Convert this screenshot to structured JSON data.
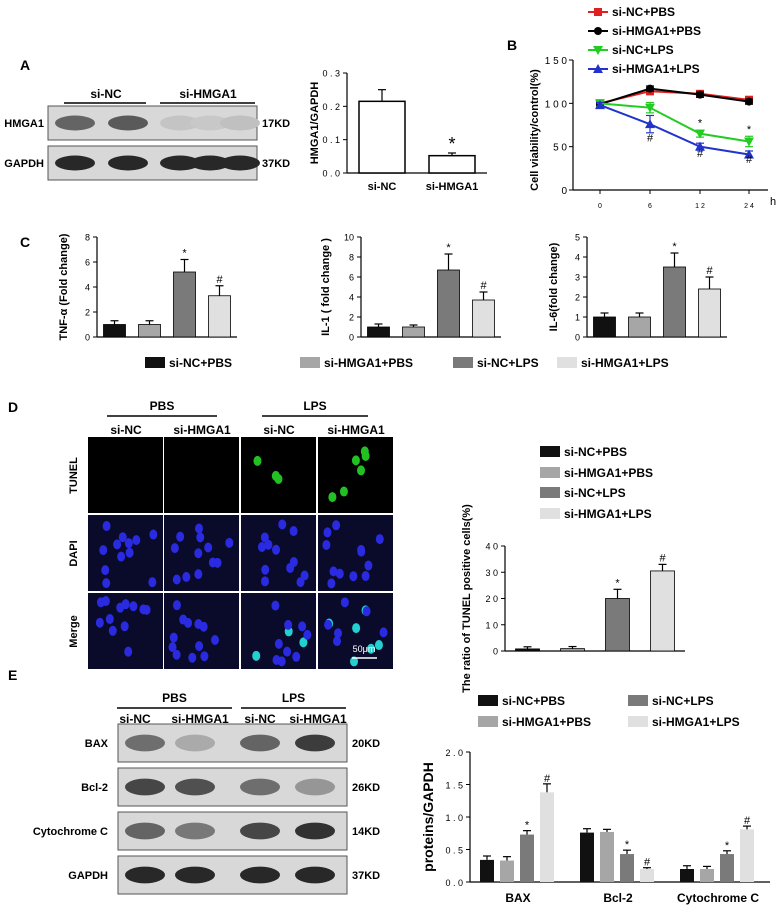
{
  "colors": {
    "black": "#111111",
    "gray": "#a6a6a6",
    "dark_gray": "#7a7a7a",
    "light": "#e0e0e0",
    "red": "#e02020",
    "green": "#22cc22",
    "blue": "#2233cc",
    "tunel_bg": "#000000",
    "dapi_bg": "#0a0a2a",
    "nucleus": "#2a2ae0",
    "tunel_pos": "#22c022",
    "merge_pos": "#22d0d0"
  },
  "panel_letters": {
    "a": "A",
    "b": "B",
    "c": "C",
    "d": "D",
    "e": "E"
  },
  "panel_a": {
    "blot_header": [
      "si-NC",
      "si-HMGA1"
    ],
    "rows": [
      {
        "label": "HMGA1",
        "kd": "17KD",
        "bands": [
          0.6,
          0.65,
          0.12,
          0.1,
          0.14
        ]
      },
      {
        "label": "GAPDH",
        "kd": "37KD",
        "bands": [
          0.9,
          0.9,
          0.9,
          0.9,
          0.9
        ]
      }
    ]
  },
  "panel_d": {
    "group_labels": [
      "PBS",
      "LPS"
    ],
    "col_labels": [
      "si-NC",
      "si-HMGA1",
      "si-NC",
      "si-HMGA1"
    ],
    "row_labels": [
      "TUNEL",
      "DAPI",
      "Merge"
    ],
    "scale_bar": "50μm",
    "legend": [
      "si-NC+PBS",
      "si-HMGA1+PBS",
      "si-NC+LPS",
      "si-HMGA1+LPS"
    ]
  },
  "panel_e": {
    "group_labels": [
      "PBS",
      "LPS"
    ],
    "col_labels": [
      "si-NC",
      "si-HMGA1",
      "si-NC",
      "si-HMGA1"
    ],
    "rows": [
      {
        "label": "BAX",
        "kd": "20KD",
        "bands": [
          0.55,
          0.25,
          0.6,
          0.8
        ]
      },
      {
        "label": "Bcl-2",
        "kd": "26KD",
        "bands": [
          0.75,
          0.7,
          0.55,
          0.35
        ]
      },
      {
        "label": "Cytochrome C",
        "kd": "14KD",
        "bands": [
          0.6,
          0.5,
          0.75,
          0.85
        ]
      },
      {
        "label": "GAPDH",
        "kd": "37KD",
        "bands": [
          0.9,
          0.9,
          0.9,
          0.9
        ]
      }
    ],
    "legend": [
      "si-NC+PBS",
      "si-HMGA1+PBS",
      "si-NC+LPS",
      "si-HMGA1+LPS"
    ]
  },
  "legend_c": [
    "si-NC+PBS",
    "si-HMGA1+PBS",
    "si-NC+LPS",
    "si-HMGA1+LPS"
  ],
  "chart_data": [
    {
      "id": "a_bar",
      "type": "bar",
      "categories": [
        "si-NC",
        "si-HMGA1"
      ],
      "values": [
        0.215,
        0.052
      ],
      "errors": [
        0.035,
        0.008
      ],
      "ylabel": "HMGA1/GAPDH",
      "ylim": [
        0,
        0.3
      ],
      "yticks": [
        "0 . 0",
        "0 . 1",
        "0 . 2",
        "0 . 3"
      ],
      "annotations": [
        "",
        "*"
      ]
    },
    {
      "id": "b_line",
      "type": "line",
      "x": [
        0,
        6,
        12,
        24
      ],
      "xticks": [
        "0",
        "6",
        "1 2",
        "2 4"
      ],
      "xunit": "h",
      "ylabel": "Cell viability/control(%)",
      "ylim": [
        0,
        150
      ],
      "yticks": [
        "0",
        "5 0",
        "1 0 0",
        "1 5 0"
      ],
      "series": [
        {
          "name": "si-NC+PBS",
          "color": "red",
          "marker": "square",
          "values": [
            100,
            114,
            111,
            104
          ],
          "errors": [
            3,
            4,
            3,
            4
          ]
        },
        {
          "name": "si-HMGA1+PBS",
          "color": "black",
          "marker": "circle",
          "values": [
            99,
            117,
            110,
            102
          ],
          "errors": [
            3,
            3,
            3,
            3
          ]
        },
        {
          "name": "si-NC+LPS",
          "color": "green",
          "marker": "triangle-down",
          "values": [
            100,
            95,
            65,
            56
          ],
          "errors": [
            4,
            6,
            4,
            6
          ]
        },
        {
          "name": "si-HMGA1+LPS",
          "color": "blue",
          "marker": "triangle-up",
          "values": [
            98,
            76,
            50,
            41
          ],
          "errors": [
            3,
            10,
            4,
            4
          ]
        }
      ],
      "annotations": [
        {
          "text": "*",
          "x": 12,
          "y": 73
        },
        {
          "text": "*",
          "x": 24,
          "y": 66
        },
        {
          "text": "#",
          "x": 6,
          "y": 56
        },
        {
          "text": "#",
          "x": 12,
          "y": 38
        },
        {
          "text": "#",
          "x": 24,
          "y": 31
        }
      ]
    },
    {
      "id": "c1",
      "type": "bar",
      "categories": [
        "si-NC+PBS",
        "si-HMGA1+PBS",
        "si-NC+LPS",
        "si-HMGA1+LPS"
      ],
      "values": [
        1.0,
        1.0,
        5.2,
        3.3
      ],
      "errors": [
        0.3,
        0.3,
        1.0,
        0.8
      ],
      "ylabel": "TNF-α (Fold change)",
      "ylim": [
        0,
        8
      ],
      "yticks": [
        "0",
        "2",
        "4",
        "6",
        "8"
      ],
      "annotations": [
        "",
        "",
        "*",
        "#"
      ]
    },
    {
      "id": "c2",
      "type": "bar",
      "categories": [
        "si-NC+PBS",
        "si-HMGA1+PBS",
        "si-NC+LPS",
        "si-HMGA1+LPS"
      ],
      "values": [
        1.0,
        1.0,
        6.7,
        3.7
      ],
      "errors": [
        0.3,
        0.2,
        1.6,
        0.8
      ],
      "ylabel": "IL-1 ( fold change )",
      "ylim": [
        0,
        10
      ],
      "yticks": [
        "0",
        "2",
        "4",
        "6",
        "8",
        "10"
      ],
      "annotations": [
        "",
        "",
        "*",
        "#"
      ]
    },
    {
      "id": "c3",
      "type": "bar",
      "categories": [
        "si-NC+PBS",
        "si-HMGA1+PBS",
        "si-NC+LPS",
        "si-HMGA1+LPS"
      ],
      "values": [
        1.0,
        1.0,
        3.5,
        2.4
      ],
      "errors": [
        0.2,
        0.2,
        0.7,
        0.6
      ],
      "ylabel": "IL-6(fold change)",
      "ylim": [
        0,
        5
      ],
      "yticks": [
        "0",
        "1",
        "2",
        "3",
        "4",
        "5"
      ],
      "annotations": [
        "",
        "",
        "*",
        "#"
      ]
    },
    {
      "id": "d_bar",
      "type": "bar",
      "categories": [
        "si-NC+PBS",
        "si-HMGA1+PBS",
        "si-NC+LPS",
        "si-HMGA1+LPS"
      ],
      "values": [
        0.8,
        0.9,
        20,
        30.5
      ],
      "errors": [
        0.8,
        0.8,
        3.5,
        2.5
      ],
      "ylabel": "The ratio of TUNEL positive cells(%)",
      "ylim": [
        0,
        40
      ],
      "yticks": [
        "0",
        "1 0",
        "2 0",
        "3 0",
        "4 0"
      ],
      "annotations": [
        "",
        "",
        "*",
        "#"
      ]
    },
    {
      "id": "e_bar",
      "type": "bar",
      "categories": [
        "BAX",
        "Bcl-2",
        "Cytochrome C"
      ],
      "series": [
        {
          "name": "si-NC+PBS",
          "values": [
            0.34,
            0.76,
            0.2
          ],
          "errors": [
            0.06,
            0.06,
            0.05
          ]
        },
        {
          "name": "si-HMGA1+PBS",
          "values": [
            0.33,
            0.77,
            0.2
          ],
          "errors": [
            0.06,
            0.04,
            0.04
          ]
        },
        {
          "name": "si-NC+LPS",
          "values": [
            0.73,
            0.43,
            0.43
          ],
          "errors": [
            0.06,
            0.06,
            0.05
          ]
        },
        {
          "name": "si-HMGA1+LPS",
          "values": [
            1.38,
            0.2,
            0.81
          ],
          "errors": [
            0.13,
            0.02,
            0.05
          ]
        }
      ],
      "ylabel": "proteins/GAPDH",
      "ylim": [
        0,
        2.0
      ],
      "yticks": [
        "0 . 0",
        "0 . 5",
        "1 . 0",
        "1 . 5",
        "2 . 0"
      ],
      "annotations": [
        [
          "",
          "",
          "*",
          "#"
        ],
        [
          "",
          "",
          "*",
          "#"
        ],
        [
          "",
          "",
          "*",
          "#"
        ]
      ]
    }
  ]
}
